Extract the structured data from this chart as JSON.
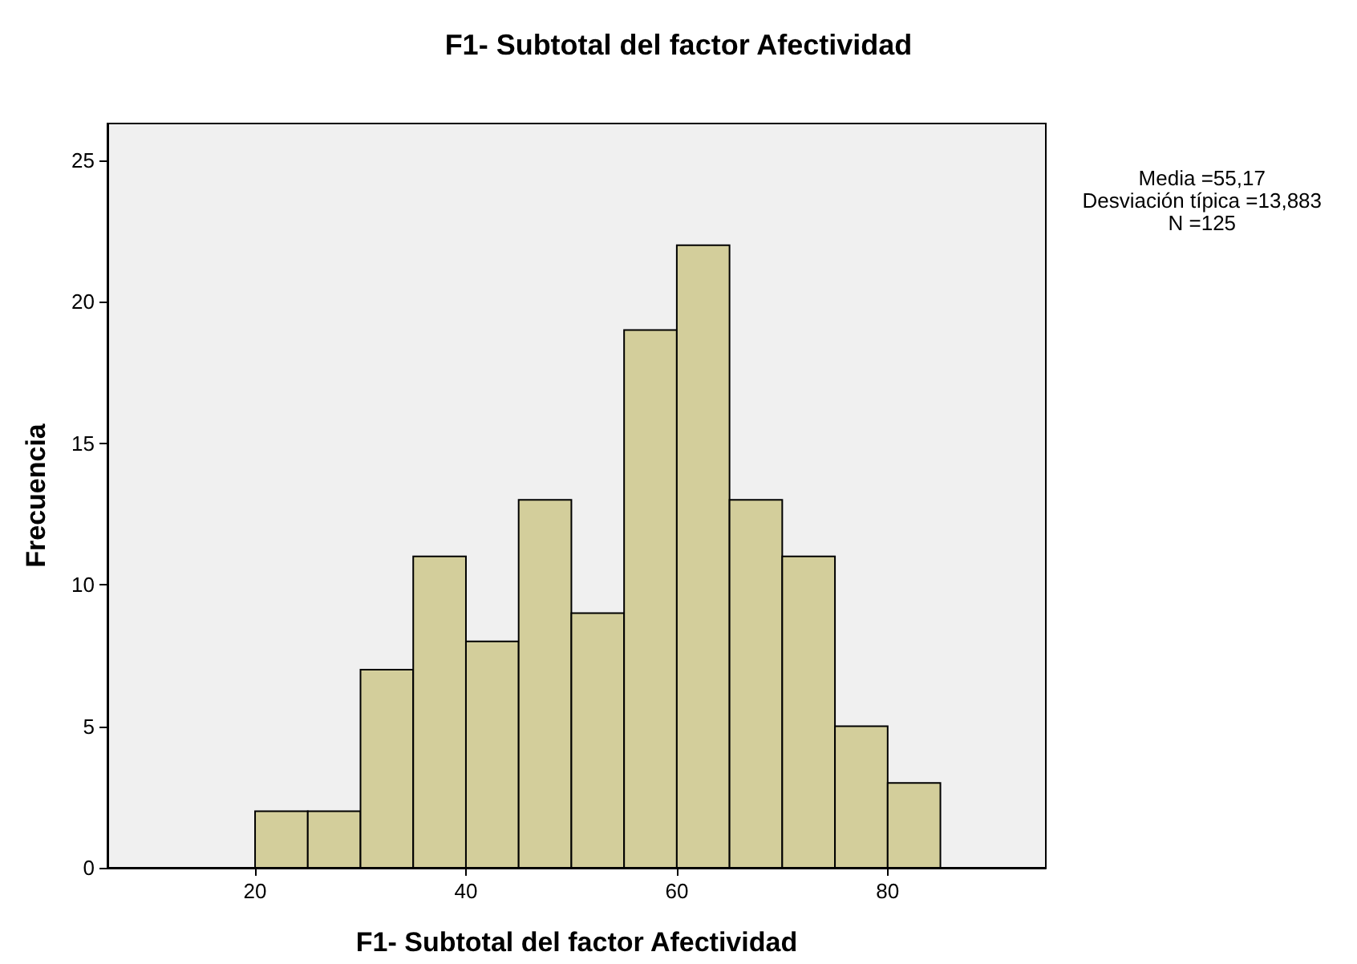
{
  "chart_data": {
    "type": "histogram",
    "title": "F1- Subtotal del factor Afectividad",
    "xlabel": "F1- Subtotal del factor Afectividad",
    "ylabel": "Frecuencia",
    "bins": [
      20,
      25,
      30,
      35,
      40,
      45,
      50,
      55,
      60,
      65,
      70,
      75,
      80,
      85
    ],
    "values": [
      2,
      2,
      7,
      11,
      8,
      13,
      9,
      19,
      22,
      13,
      11,
      5,
      3
    ],
    "color": "#d3ce9b",
    "xlim": [
      6,
      95
    ],
    "xticks": [
      20,
      40,
      60,
      80
    ],
    "ylim": [
      0,
      26.3
    ],
    "yticks": [
      0,
      5,
      10,
      15,
      20,
      25
    ],
    "grid": false,
    "annotations": [
      "Media =55,17",
      "Desviación típica =13,883",
      "N =125"
    ]
  }
}
